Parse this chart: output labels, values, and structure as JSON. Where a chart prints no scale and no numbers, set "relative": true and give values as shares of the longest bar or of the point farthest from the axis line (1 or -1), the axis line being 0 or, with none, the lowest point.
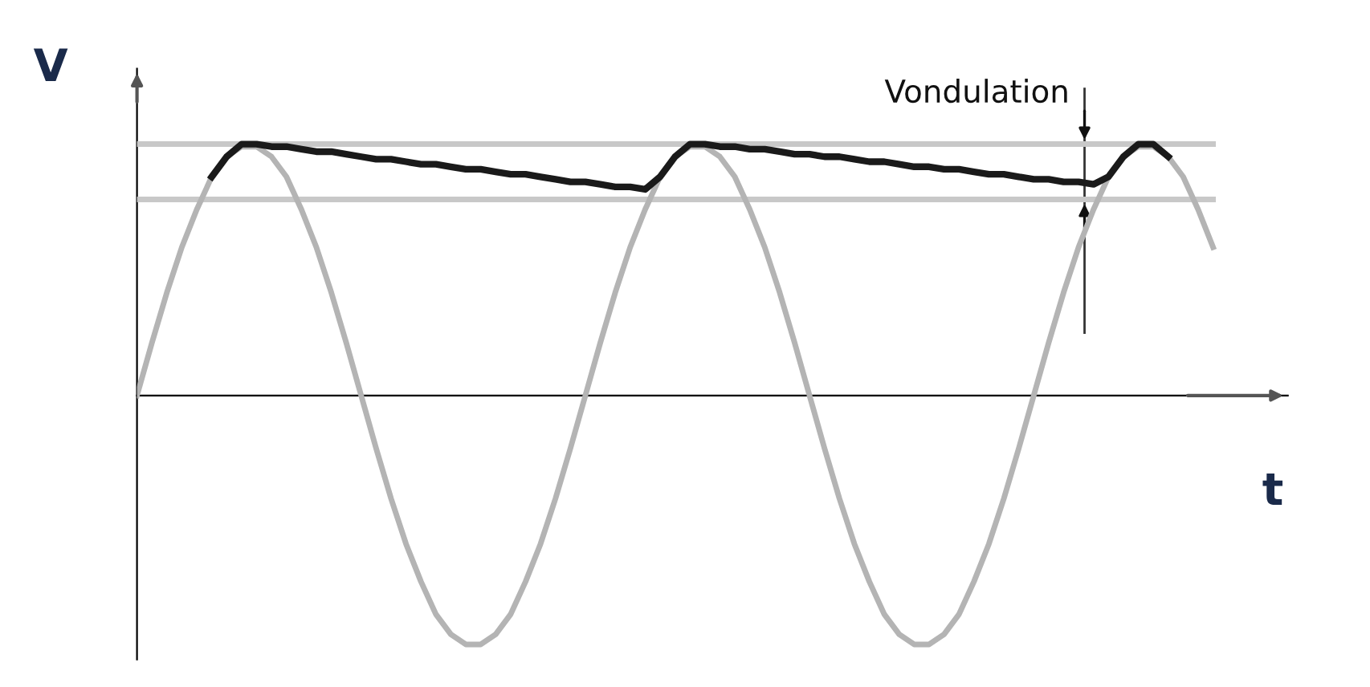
{
  "chart_data": {
    "type": "line",
    "relative": true,
    "xlabel": "t",
    "ylabel": "V",
    "categories": [
      null,
      null,
      null,
      null,
      null,
      null,
      null,
      null,
      null,
      null,
      null,
      null,
      null,
      null,
      null,
      null,
      null,
      null,
      null,
      null,
      null,
      null,
      null,
      null,
      null,
      null,
      null,
      null,
      null,
      null,
      null,
      null,
      null,
      null,
      null,
      null,
      null,
      null,
      null,
      null,
      null,
      null,
      null,
      null,
      null,
      null,
      null,
      null,
      null,
      null,
      null,
      null,
      null,
      null,
      null,
      null,
      null,
      null,
      null,
      null,
      null,
      null,
      null,
      null,
      null,
      null,
      null,
      null,
      null,
      null,
      null,
      null,
      null
    ],
    "series": [
      {
        "color": "#c8c8c8",
        "values": [
          1,
          1,
          1,
          1,
          1,
          1,
          1,
          1,
          1,
          1,
          1,
          1,
          1,
          1,
          1,
          1,
          1,
          1,
          1,
          1,
          1,
          1,
          1,
          1,
          1,
          1,
          1,
          1,
          1,
          1,
          1,
          1,
          1,
          1,
          1,
          1,
          1,
          1,
          1,
          1,
          1,
          1,
          1,
          1,
          1,
          1,
          1,
          1,
          1,
          1,
          1,
          1,
          1,
          1,
          1,
          1,
          1,
          1,
          1,
          1,
          1,
          1,
          1,
          1,
          1,
          1,
          1,
          1,
          1,
          1,
          1,
          1,
          1
        ]
      },
      {
        "color": "#c8c8c8",
        "values": [
          0.78,
          0.78,
          0.78,
          0.78,
          0.78,
          0.78,
          0.78,
          0.78,
          0.78,
          0.78,
          0.78,
          0.78,
          0.78,
          0.78,
          0.78,
          0.78,
          0.78,
          0.78,
          0.78,
          0.78,
          0.78,
          0.78,
          0.78,
          0.78,
          0.78,
          0.78,
          0.78,
          0.78,
          0.78,
          0.78,
          0.78,
          0.78,
          0.78,
          0.78,
          0.78,
          0.78,
          0.78,
          0.78,
          0.78,
          0.78,
          0.78,
          0.78,
          0.78,
          0.78,
          0.78,
          0.78,
          0.78,
          0.78,
          0.78,
          0.78,
          0.78,
          0.78,
          0.78,
          0.78,
          0.78,
          0.78,
          0.78,
          0.78,
          0.78,
          0.78,
          0.78,
          0.78,
          0.78,
          0.78,
          0.78,
          0.78,
          0.78,
          0.78,
          0.78,
          0.78,
          0.78,
          0.78,
          0.78
        ]
      },
      {
        "color": "#b4b4b4",
        "values": [
          0,
          0.21,
          0.41,
          0.59,
          0.74,
          0.87,
          0.95,
          0.99,
          0.99,
          0.95,
          0.87,
          0.74,
          0.59,
          0.41,
          0.21,
          0,
          -0.21,
          -0.41,
          -0.59,
          -0.74,
          -0.87,
          -0.95,
          -0.99,
          -0.99,
          -0.95,
          -0.87,
          -0.74,
          -0.59,
          -0.41,
          -0.21,
          0,
          0.21,
          0.41,
          0.59,
          0.74,
          0.87,
          0.95,
          0.99,
          0.99,
          0.95,
          0.87,
          0.74,
          0.59,
          0.41,
          0.21,
          0,
          -0.21,
          -0.41,
          -0.59,
          -0.74,
          -0.87,
          -0.95,
          -0.99,
          -0.99,
          -0.95,
          -0.87,
          -0.74,
          -0.59,
          -0.41,
          -0.21,
          0,
          0.21,
          0.41,
          0.59,
          0.74,
          0.87,
          0.95,
          0.99,
          0.99,
          0.95,
          0.87,
          0.74,
          0.59
        ]
      },
      {
        "color": "#1a1a1a",
        "values": [
          null,
          null,
          null,
          null,
          null,
          0.87,
          0.95,
          1,
          1,
          0.99,
          0.99,
          0.98,
          0.97,
          0.97,
          0.96,
          0.95,
          0.94,
          0.94,
          0.93,
          0.92,
          0.92,
          0.91,
          0.9,
          0.9,
          0.89,
          0.88,
          0.88,
          0.87,
          0.86,
          0.85,
          0.85,
          0.84,
          0.83,
          0.83,
          0.82,
          0.87,
          0.95,
          1,
          1,
          0.99,
          0.99,
          0.98,
          0.98,
          0.97,
          0.96,
          0.96,
          0.95,
          0.95,
          0.94,
          0.93,
          0.93,
          0.92,
          0.91,
          0.91,
          0.9,
          0.9,
          0.89,
          0.88,
          0.88,
          0.87,
          0.86,
          0.86,
          0.85,
          0.85,
          0.84,
          0.87,
          0.95,
          1,
          1,
          0.95,
          null,
          null,
          null
        ]
      }
    ],
    "annotations": [
      "Vondulation"
    ],
    "legend": false
  }
}
